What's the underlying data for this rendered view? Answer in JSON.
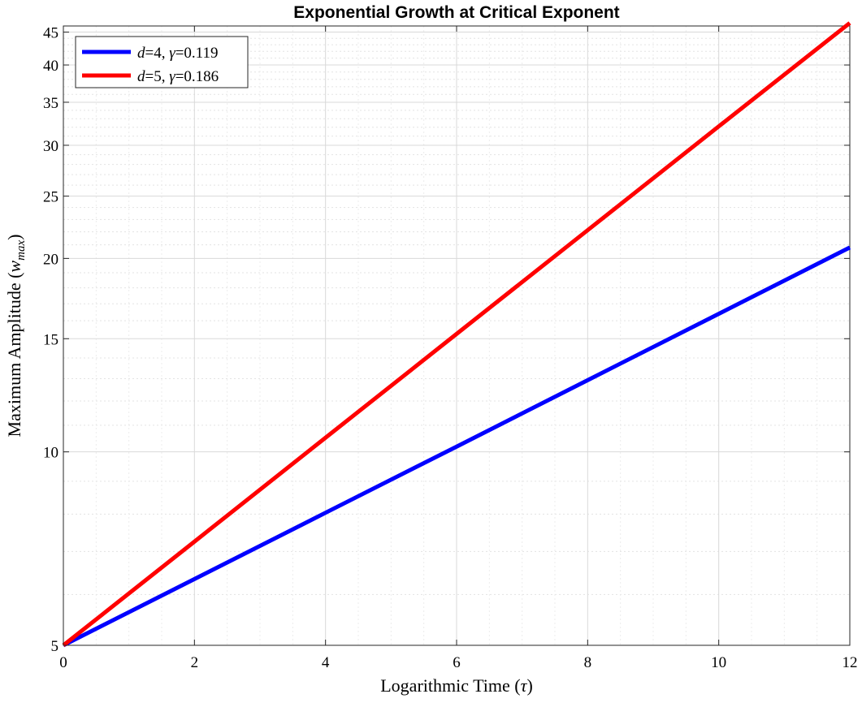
{
  "chart_data": {
    "type": "line",
    "title": "Exponential Growth at Critical Exponent",
    "xlabel": {
      "main": "Logarithmic Time (",
      "sym": "τ",
      "tail": ")"
    },
    "ylabel": {
      "main": "Maximum Amplitude (",
      "sym": "w",
      "sub": "max",
      "tail": ")"
    },
    "xscale": "linear",
    "yscale": "log",
    "xlim": [
      0,
      12
    ],
    "ylim": [
      5,
      46
    ],
    "xticks": [
      0,
      2,
      4,
      6,
      8,
      10,
      12
    ],
    "xtick_labels": [
      "0",
      "2",
      "4",
      "6",
      "8",
      "10",
      "12"
    ],
    "yticks": [
      5,
      10,
      15,
      20,
      25,
      30,
      35,
      40,
      45
    ],
    "ytick_labels": [
      "5",
      "10",
      "15",
      "20",
      "25",
      "30",
      "35",
      "40",
      "45"
    ],
    "grid": true,
    "minor_grid": true,
    "legend_position": "top-left",
    "x": [
      0,
      2,
      4,
      6,
      8,
      10,
      12
    ],
    "series": [
      {
        "legend": {
          "var": "d",
          "eq1": "=4, ",
          "sym": "γ",
          "eq2": "=0.119"
        },
        "color": "#0000ff",
        "values": [
          5.0,
          6.34,
          8.04,
          10.19,
          12.93,
          16.4,
          20.8
        ]
      },
      {
        "legend": {
          "var": "d",
          "eq1": "=5, ",
          "sym": "γ",
          "eq2": "=0.186"
        },
        "color": "#ff0000",
        "values": [
          5.0,
          7.25,
          10.52,
          15.26,
          22.13,
          32.1,
          46.5
        ]
      }
    ]
  }
}
